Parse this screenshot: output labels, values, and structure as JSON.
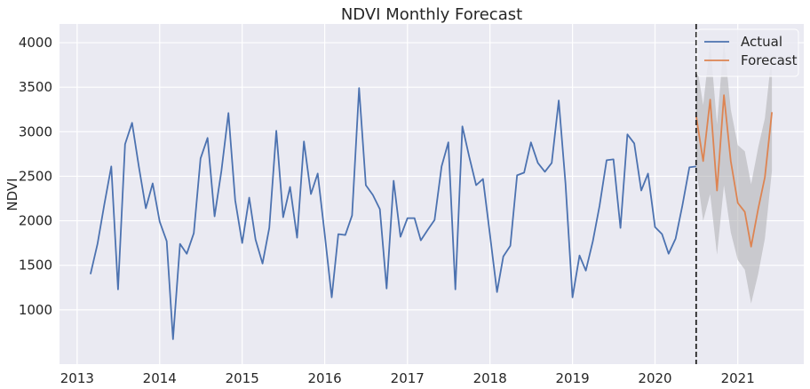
{
  "chart_data": {
    "type": "line",
    "title": "NDVI Monthly Forecast",
    "xlabel": "",
    "ylabel": "NDVI",
    "x_ticks": [
      "2013",
      "2014",
      "2015",
      "2016",
      "2017",
      "2018",
      "2019",
      "2020",
      "2021"
    ],
    "y_ticks": [
      1000,
      1500,
      2000,
      2500,
      3000,
      3500,
      4000
    ],
    "xlim": [
      "2012-10-15",
      "2021-10-20"
    ],
    "ylim": [
      390,
      4210
    ],
    "forecast_start": "2020-07-01",
    "grid": true,
    "legend_position": "top-right",
    "colors": {
      "background": "#eaeaf2",
      "grid": "#ffffff",
      "actual": "#4c72b0",
      "forecast": "#dd8452",
      "band": "#a8a8aa",
      "vline": "#262626"
    },
    "series": [
      {
        "name": "Actual",
        "start": "2013-03",
        "values": [
          1400,
          1740,
          2180,
          2610,
          1230,
          2860,
          3100,
          2610,
          2140,
          2420,
          1990,
          1770,
          670,
          1740,
          1630,
          1860,
          2700,
          2930,
          2050,
          2560,
          3210,
          2230,
          1750,
          2260,
          1790,
          1520,
          1920,
          3010,
          2040,
          2380,
          1810,
          2890,
          2300,
          2530,
          1850,
          1140,
          1850,
          1840,
          2060,
          3490,
          2400,
          2290,
          2130,
          1240,
          2450,
          1820,
          2030,
          2030,
          1780,
          1900,
          2010,
          2610,
          2880,
          1230,
          3060,
          2720,
          2400,
          2470,
          1840,
          1200,
          1600,
          1720,
          2510,
          2540,
          2880,
          2650,
          2550,
          2650,
          3350,
          2420,
          1140,
          1610,
          1440,
          1770,
          2170,
          2680,
          2690,
          1920,
          2970,
          2870,
          2340,
          2530,
          1930,
          1850,
          1630,
          1800,
          2170,
          2600,
          2610
        ]
      },
      {
        "name": "Forecast",
        "start": "2020-07",
        "values": [
          3180,
          2670,
          3360,
          2340,
          3410,
          2670,
          2200,
          2100,
          1710,
          2130,
          2490,
          3220
        ],
        "lower": [
          2600,
          2000,
          2300,
          1620,
          2400,
          1870,
          1560,
          1450,
          1070,
          1400,
          1800,
          2560
        ],
        "upper": [
          3800,
          3300,
          4000,
          3080,
          4020,
          3250,
          2850,
          2780,
          2410,
          2820,
          3150,
          3880
        ]
      }
    ]
  }
}
